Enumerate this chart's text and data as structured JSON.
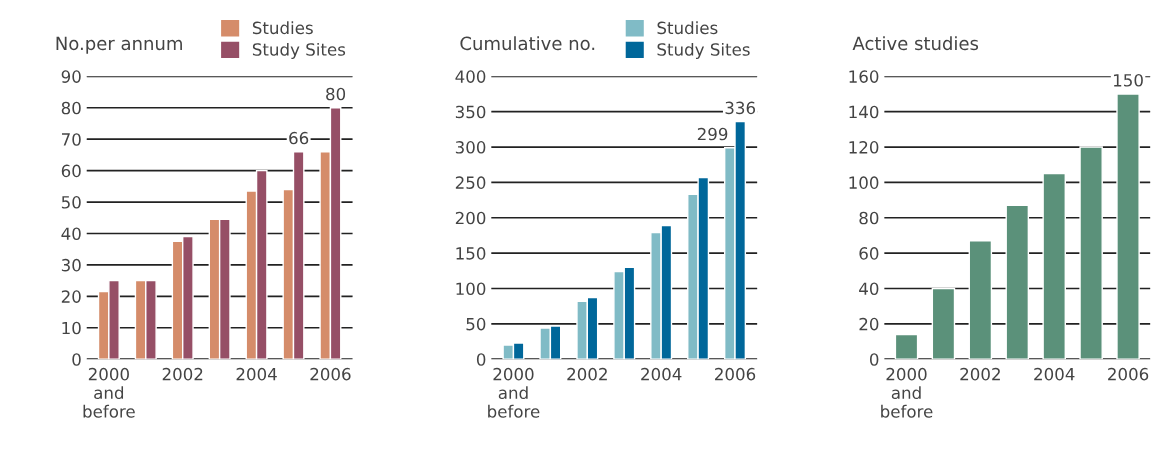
{
  "chart_data": [
    {
      "type": "bar",
      "ylabel": "No.per annum",
      "categories": [
        "2000\nand\nbefore",
        null,
        "2002",
        null,
        "2004",
        null,
        "2006"
      ],
      "ylim": [
        0,
        90
      ],
      "yticks": [
        0,
        10,
        20,
        30,
        40,
        50,
        60,
        70,
        80,
        90
      ],
      "grid": "y",
      "legend": "top right",
      "series": [
        {
          "name": "Studies",
          "color": "#d58c6a",
          "values": [
            21.5,
            25,
            37.5,
            44.5,
            53.5,
            54,
            66
          ],
          "value_labels": [
            null,
            null,
            null,
            null,
            null,
            null,
            null
          ]
        },
        {
          "name": "Study Sites",
          "color": "#964f66",
          "values": [
            25,
            25,
            39,
            44.5,
            60,
            66,
            80
          ],
          "value_labels": [
            null,
            null,
            null,
            null,
            null,
            "66",
            "80"
          ]
        }
      ]
    },
    {
      "type": "bar",
      "ylabel": "Cumulative no.",
      "categories": [
        "2000\nand\nbefore",
        null,
        "2002",
        null,
        "2004",
        null,
        "2006"
      ],
      "ylim": [
        0,
        400
      ],
      "yticks": [
        0,
        50,
        100,
        150,
        200,
        250,
        300,
        350,
        400
      ],
      "grid": "y",
      "legend": "top right",
      "series": [
        {
          "name": "Studies",
          "color": "#80bbc6",
          "values": [
            20,
            44,
            82,
            124,
            179,
            233,
            299
          ],
          "value_labels": [
            null,
            null,
            null,
            null,
            null,
            null,
            "299"
          ]
        },
        {
          "name": "Study Sites",
          "color": "#00679a",
          "values": [
            23,
            47,
            87,
            130,
            189,
            257,
            336
          ],
          "value_labels": [
            null,
            null,
            null,
            null,
            null,
            null,
            "336"
          ]
        }
      ]
    },
    {
      "type": "bar",
      "ylabel": "Active studies",
      "categories": [
        "2000\nand\nbefore",
        null,
        "2002",
        null,
        "2004",
        null,
        "2006"
      ],
      "ylim": [
        0,
        160
      ],
      "yticks": [
        0,
        20,
        40,
        60,
        80,
        100,
        120,
        140,
        160
      ],
      "grid": "y",
      "series": [
        {
          "color": "#5b917a",
          "values": [
            14,
            40,
            67,
            87,
            105,
            120,
            150
          ],
          "value_labels": [
            null,
            null,
            null,
            null,
            null,
            null,
            "150"
          ]
        }
      ]
    }
  ]
}
